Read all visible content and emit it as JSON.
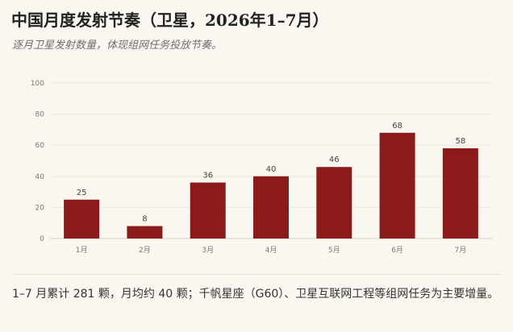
{
  "header": {
    "title": "中国月度发射节奏（卫星，2026年1–7月）",
    "subtitle": "逐月卫星发射数量，体现组网任务投放节奏。"
  },
  "footer": {
    "note": "1–7 月累计 281 颗，月均约 40 颗；千帆星座（G60）、卫星互联网工程等组网任务为主要增量。"
  },
  "colors": {
    "bar": "#8b1a1a",
    "grid": "#ece6dc",
    "axis": "#d8d0c4",
    "tick_text": "#777777"
  },
  "chart_data": {
    "type": "bar",
    "title": "中国月度发射节奏（卫星，2026年1–7月）",
    "subtitle": "逐月卫星发射数量，体现组网任务投放节奏。",
    "categories": [
      "1月",
      "2月",
      "3月",
      "4月",
      "5月",
      "6月",
      "7月"
    ],
    "values": [
      25,
      8,
      36,
      40,
      46,
      68,
      58
    ],
    "yticks": [
      0,
      20,
      40,
      60,
      80,
      100
    ],
    "ylim": [
      0,
      100
    ],
    "xlabel": "",
    "ylabel": "",
    "grid": true,
    "legend": "none"
  }
}
